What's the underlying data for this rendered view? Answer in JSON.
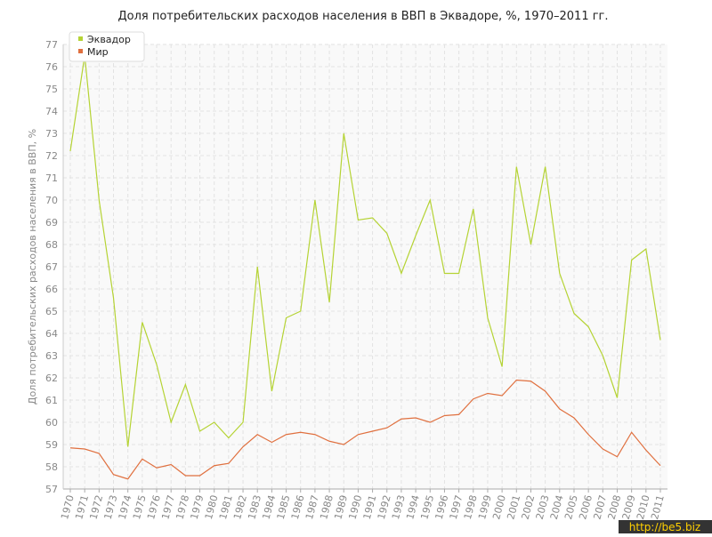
{
  "chart_data": {
    "type": "line",
    "title": "Доля потребительских расходов населения в ВВП в Эквадоре, %, 1970–2011 гг.",
    "y_label": "Доля потребительских расходов населения в ВВП, %",
    "watermark": "http://be5.biz",
    "categories": [
      "1970",
      "1971",
      "1972",
      "1973",
      "1974",
      "1975",
      "1976",
      "1977",
      "1978",
      "1979",
      "1980",
      "1981",
      "1982",
      "1983",
      "1984",
      "1985",
      "1986",
      "1987",
      "1988",
      "1989",
      "1990",
      "1991",
      "1992",
      "1993",
      "1994",
      "1995",
      "1996",
      "1997",
      "1998",
      "1999",
      "2000",
      "2001",
      "2002",
      "2003",
      "2004",
      "2005",
      "2006",
      "2007",
      "2008",
      "2009",
      "2010",
      "2011"
    ],
    "series": [
      {
        "name": "Эквадор",
        "color": "#b5d334",
        "values": [
          72.2,
          76.5,
          70.0,
          65.6,
          58.9,
          64.5,
          62.6,
          60.0,
          61.7,
          59.6,
          60.0,
          59.3,
          60.0,
          67.0,
          61.4,
          64.7,
          65.0,
          70.0,
          65.4,
          73.0,
          69.1,
          69.2,
          68.5,
          66.7,
          68.4,
          70.0,
          66.7,
          66.7,
          69.6,
          64.7,
          62.5,
          71.5,
          68.0,
          71.5,
          66.7,
          64.9,
          64.3,
          63.0,
          61.1,
          67.3,
          67.8,
          63.7
        ]
      },
      {
        "name": "Мир",
        "color": "#e0703f",
        "values": [
          58.85,
          58.8,
          58.6,
          57.65,
          57.45,
          58.35,
          57.95,
          58.1,
          57.6,
          57.6,
          58.05,
          58.15,
          58.9,
          59.45,
          59.1,
          59.45,
          59.55,
          59.45,
          59.15,
          59.0,
          59.45,
          59.6,
          59.75,
          60.15,
          60.2,
          60.0,
          60.3,
          60.35,
          61.05,
          61.3,
          61.2,
          61.9,
          61.85,
          61.4,
          60.6,
          60.2,
          59.45,
          58.8,
          58.45,
          59.55,
          58.75,
          58.05
        ]
      }
    ],
    "ylim": [
      57,
      77
    ],
    "yticks": [
      57,
      58,
      59,
      60,
      61,
      62,
      63,
      64,
      65,
      66,
      67,
      68,
      69,
      70,
      71,
      72,
      73,
      74,
      75,
      76,
      77
    ],
    "grid": true,
    "legend": "top-left"
  }
}
